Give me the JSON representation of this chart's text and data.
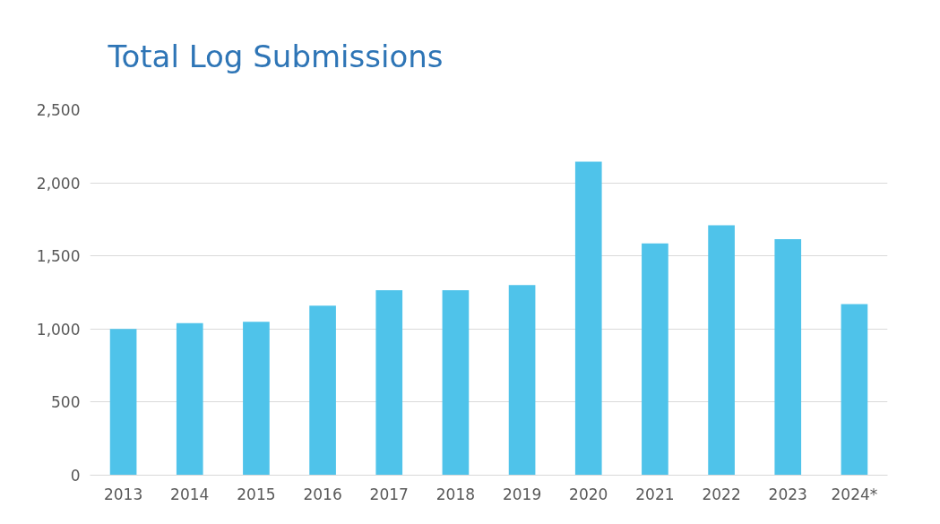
{
  "chart_data": {
    "type": "bar",
    "title": "Total Log Submissions",
    "categories": [
      "2013",
      "2014",
      "2015",
      "2016",
      "2017",
      "2018",
      "2019",
      "2020",
      "2021",
      "2022",
      "2023",
      "2024*"
    ],
    "values": [
      1000,
      1040,
      1050,
      1160,
      1265,
      1265,
      1300,
      2145,
      1585,
      1710,
      1615,
      1170
    ],
    "color": "#4fc3ea",
    "ylim": [
      0,
      2500
    ],
    "yticks": [
      0,
      500,
      {
        "value": 1000,
        "label": "1,000"
      },
      {
        "value": 1500,
        "label": "1,500"
      },
      {
        "value": 2000,
        "label": "2,000"
      },
      {
        "value": 2500,
        "label": "2,500"
      }
    ],
    "grid": "y"
  }
}
